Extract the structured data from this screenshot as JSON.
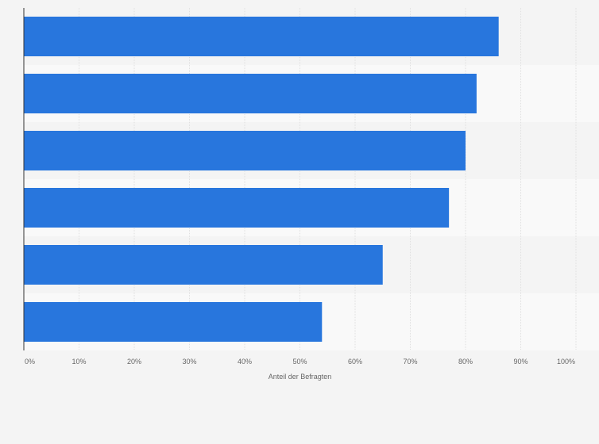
{
  "chart_data": {
    "type": "bar",
    "orientation": "horizontal",
    "categories": [
      "",
      "",
      "",
      "",
      "",
      ""
    ],
    "values": [
      86,
      82,
      80,
      77,
      65,
      54
    ],
    "xlim": [
      0,
      100
    ],
    "xticks": [
      "0%",
      "10%",
      "20%",
      "30%",
      "40%",
      "50%",
      "60%",
      "70%",
      "80%",
      "90%",
      "100%"
    ],
    "xlabel": "Anteil der Befragten",
    "ylabel": "",
    "grid": true,
    "legend": "none",
    "colors": {
      "bar": "#2876dd",
      "band_light": "#f9f9f9",
      "band_dark": "#f4f4f4",
      "grid": "#e0e0e0",
      "axis": "#333333"
    }
  }
}
